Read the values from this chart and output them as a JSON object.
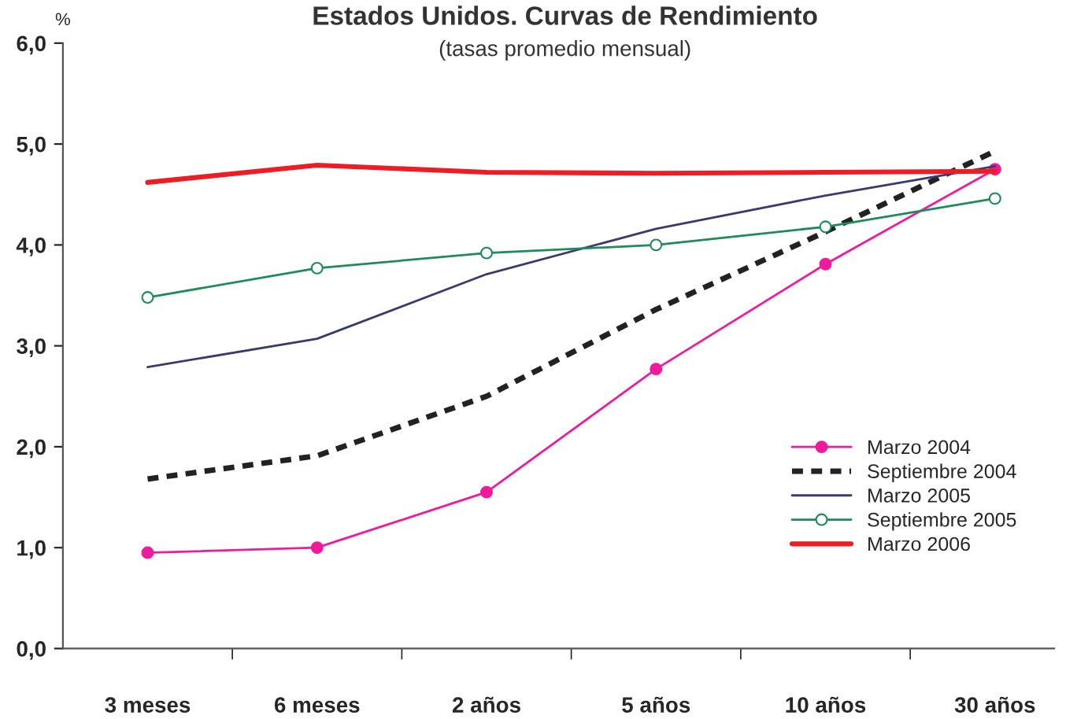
{
  "chart_data": {
    "type": "line",
    "title": "Estados Unidos. Curvas de Rendimiento",
    "subtitle": "(tasas promedio mensual)",
    "ylabel": "%",
    "categories": [
      "3 meses",
      "6 meses",
      "2 años",
      "5 años",
      "10 años",
      "30 años"
    ],
    "series": [
      {
        "name": "Marzo 2004",
        "color": "#ee1c9c",
        "marker": "circle",
        "line_style": "solid",
        "values": [
          0.95,
          1.0,
          1.55,
          2.77,
          3.81,
          4.75
        ]
      },
      {
        "name": "Septiembre 2004",
        "color": "#222222",
        "marker": "none",
        "line_style": "dashed",
        "values": [
          1.68,
          1.91,
          2.5,
          3.36,
          4.13,
          4.93
        ]
      },
      {
        "name": "Marzo 2005",
        "color": "#3b3a6e",
        "marker": "none",
        "line_style": "solid",
        "values": [
          2.79,
          3.07,
          3.71,
          4.16,
          4.49,
          4.78
        ]
      },
      {
        "name": "Septiembre 2005",
        "color": "#1f8a5a",
        "marker": "circle",
        "line_style": "solid",
        "values": [
          3.48,
          3.77,
          3.92,
          4.0,
          4.18,
          4.46
        ]
      },
      {
        "name": "Marzo 2006",
        "color": "#ee1c24",
        "marker": "none",
        "line_style": "solid",
        "values": [
          4.62,
          4.79,
          4.72,
          4.71,
          4.72,
          4.73
        ]
      }
    ],
    "ylim": [
      0,
      6
    ],
    "yticks": [
      {
        "value": 0,
        "label": "0,0"
      },
      {
        "value": 1,
        "label": "1,0"
      },
      {
        "value": 2,
        "label": "2,0"
      },
      {
        "value": 3,
        "label": "3,0"
      },
      {
        "value": 4,
        "label": "4,0"
      },
      {
        "value": 5,
        "label": "5,0"
      },
      {
        "value": 6,
        "label": "6,0"
      }
    ],
    "grid": false,
    "legend": "right"
  }
}
